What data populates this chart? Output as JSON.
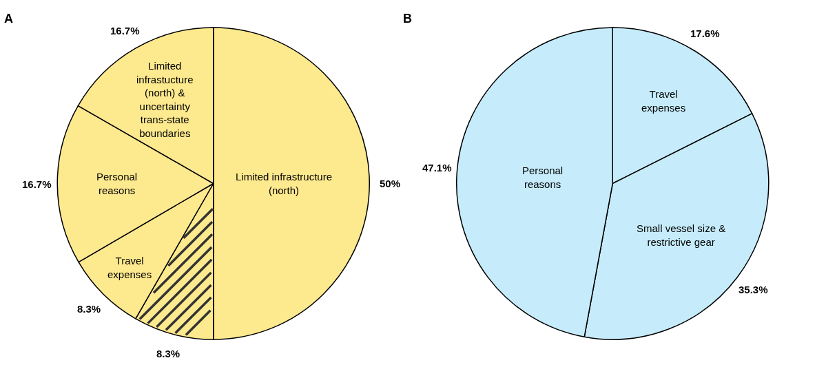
{
  "chart_data": [
    {
      "type": "pie",
      "title": "A",
      "categories": [
        "Limited infrastructure (north)",
        null,
        "Travel expenses",
        "Personal reasons",
        "Limited infrastucture (north) & uncertainty trans-state boundaries"
      ],
      "values": [
        50,
        8.3,
        8.3,
        16.7,
        16.7
      ],
      "colors": [
        "#fde98e",
        "#fde98e",
        "#fde98e",
        "#fde98e",
        "#fde98e"
      ],
      "value_labels": [
        "50%",
        "8.3%",
        "8.3%",
        "16.7%",
        "16.7%"
      ]
    },
    {
      "type": "pie",
      "title": "B",
      "categories": [
        "Travel expenses",
        "Small vessel size & restrictive gear",
        "Personal reasons"
      ],
      "values": [
        17.6,
        35.3,
        47.1
      ],
      "colors": [
        "#c6ecfb",
        "#c6ecfb",
        "#c6ecfb"
      ],
      "value_labels": [
        "17.6%",
        "35.3%",
        "47.1%"
      ]
    }
  ]
}
